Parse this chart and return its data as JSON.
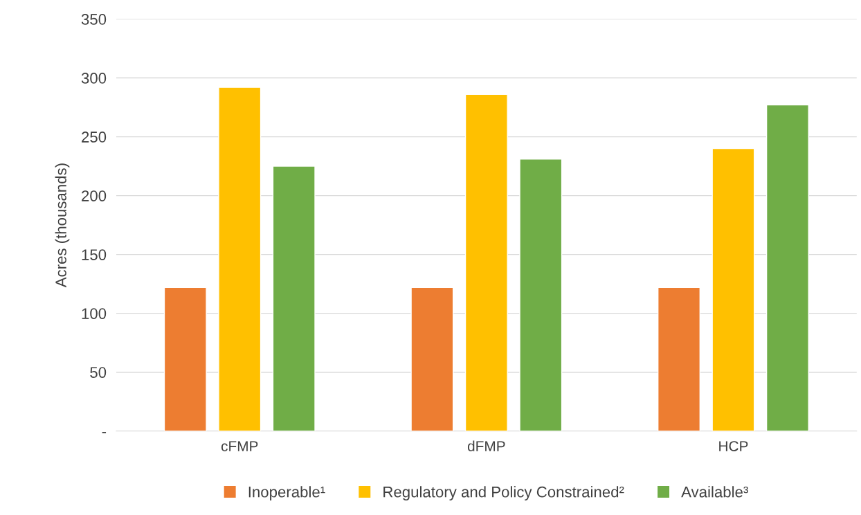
{
  "chart_data": {
    "type": "bar",
    "categories": [
      "cFMP",
      "dFMP",
      "HCP"
    ],
    "ylabel": "Acres (thousands)",
    "series": [
      {
        "name": "Inoperable¹",
        "color": "#ed7d31",
        "values": [
          122,
          122,
          122
        ]
      },
      {
        "name": "Regulatory and Policy Constrained²",
        "color": "#ffc000",
        "values": [
          292,
          286,
          240
        ]
      },
      {
        "name": "Available³",
        "color": "#70ad47",
        "values": [
          225,
          231,
          277
        ]
      }
    ],
    "ylim": [
      0,
      350
    ],
    "yticks": [
      {
        "value": 0,
        "label": "-"
      },
      50,
      100,
      150,
      200,
      250,
      300,
      350
    ],
    "grid": "y",
    "legend": "bottom"
  }
}
